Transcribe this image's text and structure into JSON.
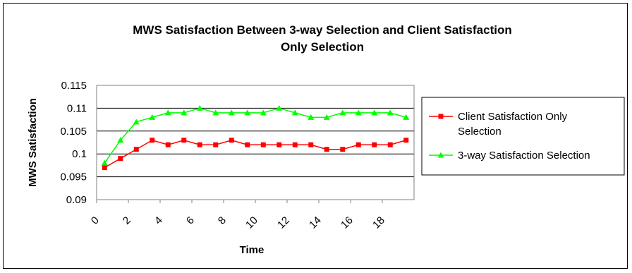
{
  "chart_data": {
    "type": "line",
    "title_lines": [
      "MWS Satisfaction Between 3-way Selection and Client Satisfaction",
      "Only Selection"
    ],
    "xlabel": "Time",
    "ylabel": "MWS Satisfaction",
    "xlim": [
      0,
      20
    ],
    "ylim": [
      0.09,
      0.115
    ],
    "x_ticks": [
      0,
      2,
      4,
      6,
      8,
      10,
      12,
      14,
      16,
      18
    ],
    "y_ticks": [
      "0.09",
      "0.095",
      "0.1",
      "0.105",
      "0.11",
      "0.115"
    ],
    "grid": "horizontal",
    "legend_position": "right",
    "x": [
      0.5,
      1.5,
      2.5,
      3.5,
      4.5,
      5.5,
      6.5,
      7.5,
      8.5,
      9.5,
      10.5,
      11.5,
      12.5,
      13.5,
      14.5,
      15.5,
      16.5,
      17.5,
      18.5,
      19.5
    ],
    "series": [
      {
        "name": "Client Satisfaction Only Selection",
        "legend_lines": [
          "Client Satisfaction Only",
          "Selection"
        ],
        "color": "#ff0000",
        "marker": "square",
        "values": [
          0.097,
          0.099,
          0.101,
          0.103,
          0.102,
          0.103,
          0.102,
          0.102,
          0.103,
          0.102,
          0.102,
          0.102,
          0.102,
          0.102,
          0.101,
          0.101,
          0.102,
          0.102,
          0.102,
          0.103
        ]
      },
      {
        "name": "3-way Satisfaction Selection",
        "legend_lines": [
          "3-way Satisfaction Selection"
        ],
        "color": "#00ff00",
        "marker": "triangle",
        "values": [
          0.098,
          0.103,
          0.107,
          0.108,
          0.109,
          0.109,
          0.11,
          0.109,
          0.109,
          0.109,
          0.109,
          0.11,
          0.109,
          0.108,
          0.108,
          0.109,
          0.109,
          0.109,
          0.109,
          0.108
        ]
      }
    ]
  }
}
